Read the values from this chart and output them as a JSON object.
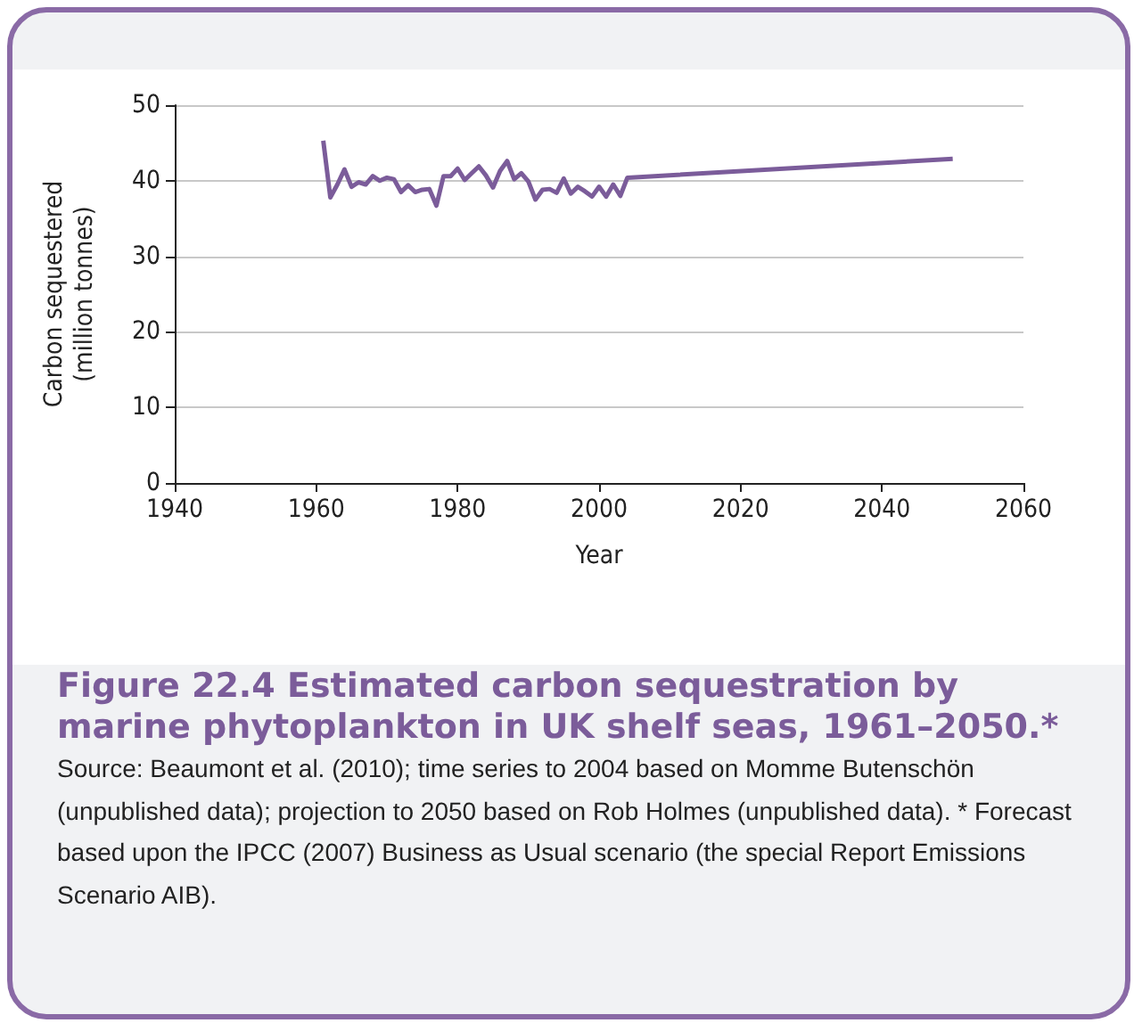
{
  "chart_data": {
    "type": "line",
    "title": "Figure 22.4 Estimated carbon sequestration by marine phytoplankton in UK shelf seas, 1961–2050.*",
    "xlabel": "Year",
    "ylabel": "Carbon sequestered\n(million tonnes)",
    "annotations": [
      "Source: Beaumont et al. (2010); time series to 2004 based on Momme Butenschön (unpublished data); projection to 2050 based on Rob Holmes (unpublished data). * Forecast based upon the IPCC (2007) Business as Usual scenario (the special Report Emissions Scenario AIB)."
    ],
    "x": [
      1961,
      1962,
      1963,
      1964,
      1965,
      1966,
      1967,
      1968,
      1969,
      1970,
      1971,
      1972,
      1973,
      1974,
      1975,
      1976,
      1977,
      1978,
      1979,
      1980,
      1981,
      1982,
      1983,
      1984,
      1985,
      1986,
      1987,
      1988,
      1989,
      1990,
      1991,
      1992,
      1993,
      1994,
      1995,
      1996,
      1997,
      1998,
      1999,
      2000,
      2001,
      2002,
      2003,
      2004,
      2050
    ],
    "series": [
      {
        "color": "#7b5c9a",
        "values": [
          45.3,
          37.8,
          39.5,
          41.5,
          39.2,
          39.8,
          39.5,
          40.6,
          40.0,
          40.4,
          40.2,
          38.5,
          39.4,
          38.5,
          38.8,
          38.9,
          36.7,
          40.6,
          40.6,
          41.6,
          40.1,
          41.0,
          41.9,
          40.7,
          39.1,
          41.3,
          42.6,
          40.2,
          41.0,
          39.9,
          37.5,
          38.8,
          38.9,
          38.4,
          40.3,
          38.3,
          39.2,
          38.6,
          37.9,
          39.2,
          37.9,
          39.5,
          38.0,
          40.4,
          42.9
        ]
      }
    ],
    "xlim": [
      1940,
      2060
    ],
    "xticks": [
      1940,
      1960,
      1980,
      2000,
      2020,
      2040,
      2060
    ],
    "ylim": [
      0,
      50
    ],
    "yticks": [
      0,
      10,
      20,
      30,
      40,
      50
    ],
    "grid": "y",
    "marker": "none",
    "line_style": "solid"
  }
}
